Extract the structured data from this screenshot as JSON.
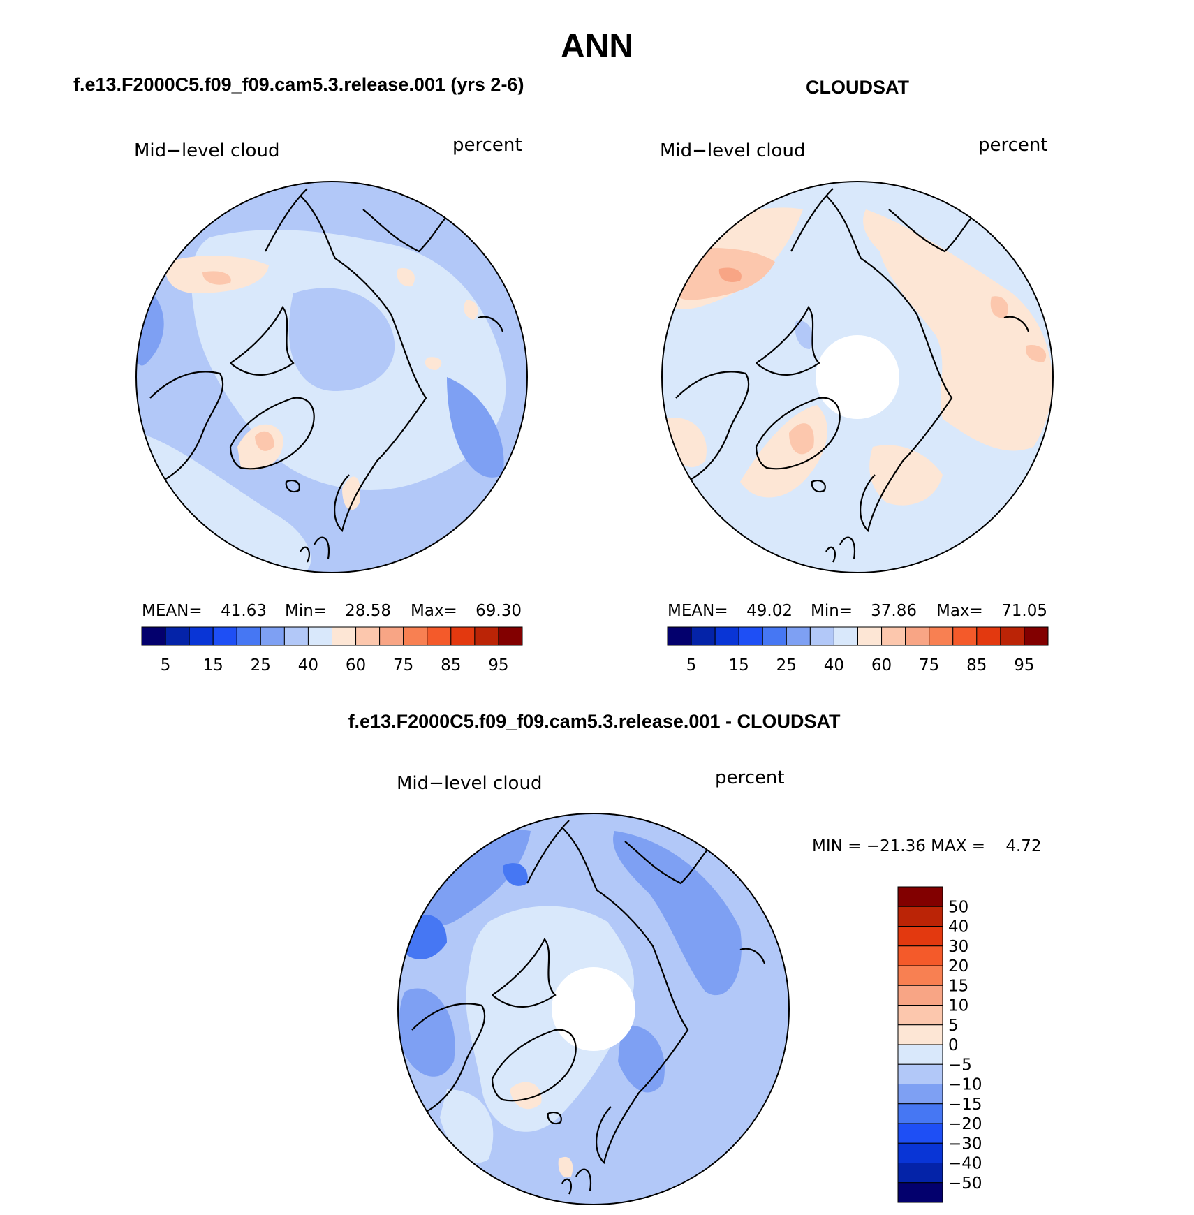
{
  "title": "ANN",
  "colors": {
    "abs_scale": [
      "#03006d",
      "#0423a8",
      "#0935d6",
      "#1e4ff5",
      "#4677f3",
      "#7ea0f3",
      "#b2c8f8",
      "#d9e8fb",
      "#fde6d5",
      "#fcc7ad",
      "#f8a585",
      "#f88052",
      "#f45a2a",
      "#e3390f",
      "#bb2406",
      "#820000"
    ],
    "diff_scale": [
      "#03006d",
      "#0423a8",
      "#0935d6",
      "#1e4ff5",
      "#4677f3",
      "#7ea0f3",
      "#b2c8f8",
      "#d9e8fb",
      "#fde6d5",
      "#fcc7ad",
      "#f8a585",
      "#f88052",
      "#f45a2a",
      "#e3390f",
      "#bb2406",
      "#820000"
    ]
  },
  "chart_data": [
    {
      "type": "heatmap",
      "projection": "north-polar-stereographic",
      "title": "f.e13.F2000C5.f09_f09.cam5.3.release.001 (yrs 2-6)",
      "variable": "Mid−level cloud",
      "units": "percent",
      "stats": [
        {
          "label": "MEAN=",
          "value": "41.63"
        },
        {
          "label": "Min=",
          "value": "28.58"
        },
        {
          "label": "Max=",
          "value": "69.30"
        }
      ],
      "colorbar_ticks": [
        "5",
        "15",
        "25",
        "40",
        "60",
        "75",
        "85",
        "95"
      ]
    },
    {
      "type": "heatmap",
      "projection": "north-polar-stereographic",
      "title": "CLOUDSAT",
      "variable": "Mid−level cloud",
      "units": "percent",
      "stats": [
        {
          "label": "MEAN=",
          "value": "49.02"
        },
        {
          "label": "Min=",
          "value": "37.86"
        },
        {
          "label": "Max=",
          "value": "71.05"
        }
      ],
      "colorbar_ticks": [
        "5",
        "15",
        "25",
        "40",
        "60",
        "75",
        "85",
        "95"
      ]
    },
    {
      "type": "heatmap",
      "projection": "north-polar-stereographic",
      "title": "f.e13.F2000C5.f09_f09.cam5.3.release.001 - CLOUDSAT",
      "variable": "Mid−level cloud",
      "units": "percent",
      "min_max_text": "MIN = −21.36 MAX =    4.72",
      "colorbar_ticks": [
        "50",
        "40",
        "30",
        "20",
        "15",
        "10",
        "5",
        "0",
        "−5",
        "−10",
        "−15",
        "−20",
        "−30",
        "−40",
        "−50"
      ]
    }
  ]
}
